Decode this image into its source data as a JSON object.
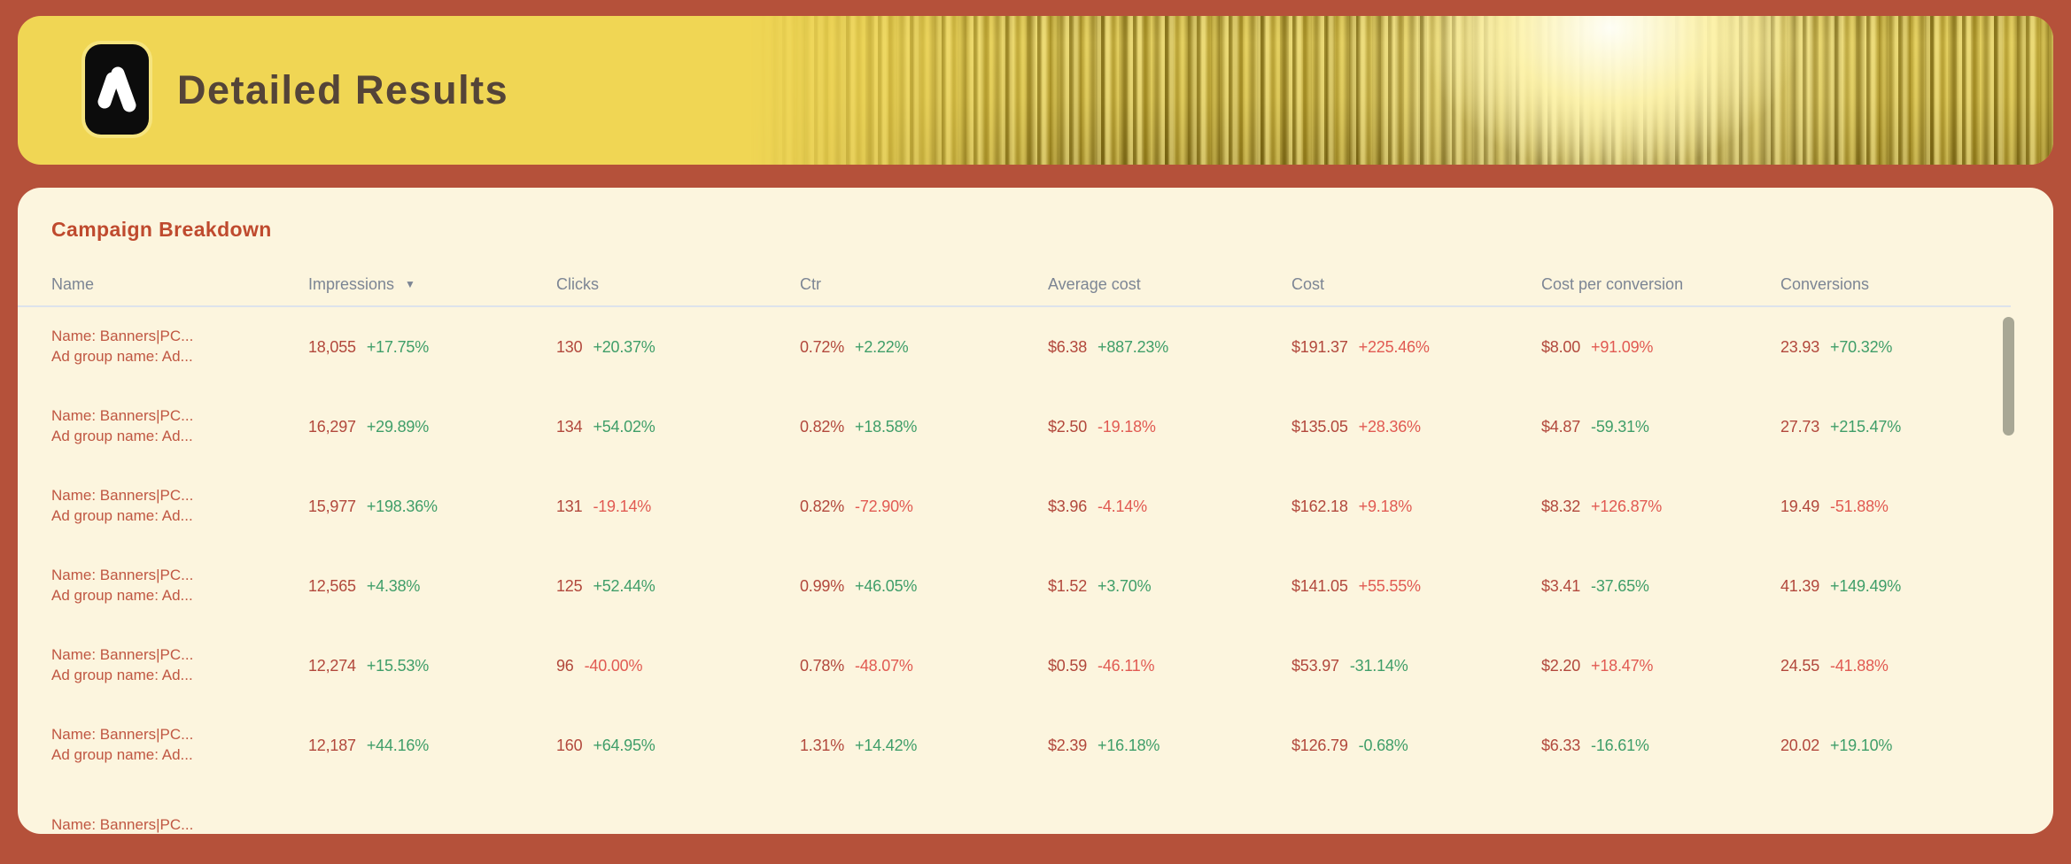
{
  "header": {
    "title": "Detailed Results",
    "logo": "google-ads-logo"
  },
  "section": {
    "title": "Campaign Breakdown"
  },
  "table": {
    "sort_icon": "▼",
    "sorted_column": "Impressions",
    "sort_direction": "desc",
    "columns": [
      {
        "label": "Name"
      },
      {
        "label": "Impressions"
      },
      {
        "label": "Clicks"
      },
      {
        "label": "Ctr"
      },
      {
        "label": "Average cost"
      },
      {
        "label": "Cost"
      },
      {
        "label": "Cost per conversion"
      },
      {
        "label": "Conversions"
      }
    ],
    "rows": [
      {
        "name": [
          "Name: Banners|PC...",
          "Ad group name: Ad..."
        ],
        "metrics": [
          [
            "18,055",
            "+17.75%",
            "green"
          ],
          [
            "130",
            "+20.37%",
            "green"
          ],
          [
            "0.72%",
            "+2.22%",
            "green"
          ],
          [
            "$6.38",
            "+887.23%",
            "green"
          ],
          [
            "$191.37",
            "+225.46%",
            "red"
          ],
          [
            "$8.00",
            "+91.09%",
            "red"
          ],
          [
            "23.93",
            "+70.32%",
            "green"
          ]
        ]
      },
      {
        "name": [
          "Name: Banners|PC...",
          "Ad group name: Ad..."
        ],
        "metrics": [
          [
            "16,297",
            "+29.89%",
            "green"
          ],
          [
            "134",
            "+54.02%",
            "green"
          ],
          [
            "0.82%",
            "+18.58%",
            "green"
          ],
          [
            "$2.50",
            "-19.18%",
            "red"
          ],
          [
            "$135.05",
            "+28.36%",
            "red"
          ],
          [
            "$4.87",
            "-59.31%",
            "green"
          ],
          [
            "27.73",
            "+215.47%",
            "green"
          ]
        ]
      },
      {
        "name": [
          "Name: Banners|PC...",
          "Ad group name: Ad..."
        ],
        "metrics": [
          [
            "15,977",
            "+198.36%",
            "green"
          ],
          [
            "131",
            "-19.14%",
            "red"
          ],
          [
            "0.82%",
            "-72.90%",
            "red"
          ],
          [
            "$3.96",
            "-4.14%",
            "red"
          ],
          [
            "$162.18",
            "+9.18%",
            "red"
          ],
          [
            "$8.32",
            "+126.87%",
            "red"
          ],
          [
            "19.49",
            "-51.88%",
            "red"
          ]
        ]
      },
      {
        "name": [
          "Name: Banners|PC...",
          "Ad group name: Ad..."
        ],
        "metrics": [
          [
            "12,565",
            "+4.38%",
            "green"
          ],
          [
            "125",
            "+52.44%",
            "green"
          ],
          [
            "0.99%",
            "+46.05%",
            "green"
          ],
          [
            "$1.52",
            "+3.70%",
            "green"
          ],
          [
            "$141.05",
            "+55.55%",
            "red"
          ],
          [
            "$3.41",
            "-37.65%",
            "green"
          ],
          [
            "41.39",
            "+149.49%",
            "green"
          ]
        ]
      },
      {
        "name": [
          "Name: Banners|PC...",
          "Ad group name: Ad..."
        ],
        "metrics": [
          [
            "12,274",
            "+15.53%",
            "green"
          ],
          [
            "96",
            "-40.00%",
            "red"
          ],
          [
            "0.78%",
            "-48.07%",
            "red"
          ],
          [
            "$0.59",
            "-46.11%",
            "red"
          ],
          [
            "$53.97",
            "-31.14%",
            "green"
          ],
          [
            "$2.20",
            "+18.47%",
            "red"
          ],
          [
            "24.55",
            "-41.88%",
            "red"
          ]
        ]
      },
      {
        "name": [
          "Name: Banners|PC...",
          "Ad group name: Ad..."
        ],
        "metrics": [
          [
            "12,187",
            "+44.16%",
            "green"
          ],
          [
            "160",
            "+64.95%",
            "green"
          ],
          [
            "1.31%",
            "+14.42%",
            "green"
          ],
          [
            "$2.39",
            "+16.18%",
            "green"
          ],
          [
            "$126.79",
            "-0.68%",
            "green"
          ],
          [
            "$6.33",
            "-16.61%",
            "green"
          ],
          [
            "20.02",
            "+19.10%",
            "green"
          ]
        ]
      }
    ],
    "partial_row": {
      "name": [
        "Name: Banners|PC..."
      ]
    }
  },
  "colors": {
    "page_bg": "#b5513a",
    "banner_bg": "#f0d654",
    "banner_title": "#544438",
    "card_bg": "#fcf5de",
    "section_title": "#bf4a2e",
    "column_header": "#7c8594",
    "value_text": "#b2483c",
    "name_text": "#c05742",
    "delta_green": "#3f9e69",
    "delta_red": "#e15a52",
    "scrollbar_thumb": "#a8a795"
  }
}
